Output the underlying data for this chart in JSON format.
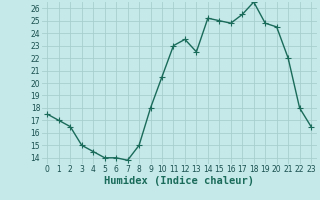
{
  "x": [
    0,
    1,
    2,
    3,
    4,
    5,
    6,
    7,
    8,
    9,
    10,
    11,
    12,
    13,
    14,
    15,
    16,
    17,
    18,
    19,
    20,
    21,
    22,
    23
  ],
  "y": [
    17.5,
    17.0,
    16.5,
    15.0,
    14.5,
    14.0,
    14.0,
    13.8,
    15.0,
    18.0,
    20.5,
    23.0,
    23.5,
    22.5,
    25.2,
    25.0,
    24.8,
    25.5,
    26.5,
    24.8,
    24.5,
    22.0,
    18.0,
    16.5
  ],
  "line_color": "#1a6b5a",
  "marker": ".",
  "marker_size": 4,
  "bg_color": "#c5e8e8",
  "grid_color": "#a8cece",
  "xlabel": "Humidex (Indice chaleur)",
  "xlim": [
    -0.5,
    23.5
  ],
  "ylim": [
    13.5,
    26.5
  ],
  "yticks": [
    14,
    15,
    16,
    17,
    18,
    19,
    20,
    21,
    22,
    23,
    24,
    25,
    26
  ],
  "xticks": [
    0,
    1,
    2,
    3,
    4,
    5,
    6,
    7,
    8,
    9,
    10,
    11,
    12,
    13,
    14,
    15,
    16,
    17,
    18,
    19,
    20,
    21,
    22,
    23
  ],
  "tick_fontsize": 5.5,
  "label_fontsize": 7.5,
  "line_width": 1.0
}
